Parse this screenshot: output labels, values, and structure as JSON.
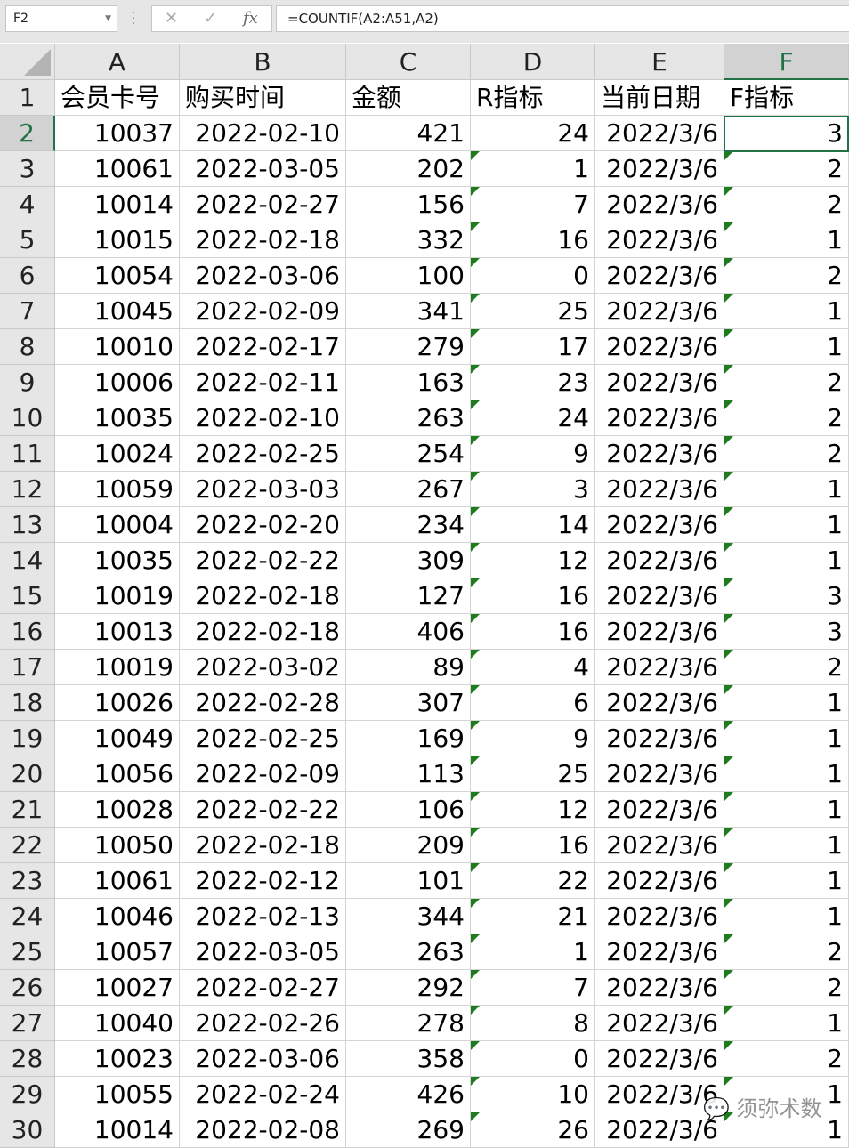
{
  "name_box": "F2",
  "formula": "=COUNTIF(A2:A51,A2)",
  "formula_icons": [
    "cancel-icon",
    "enter-icon",
    "fx-icon"
  ],
  "columns": [
    "A",
    "B",
    "C",
    "D",
    "E",
    "F"
  ],
  "selected_column": "F",
  "selected_row": 2,
  "header_row": [
    "会员卡号",
    "购买时间",
    "金额",
    "R指标",
    "当前日期",
    "F指标"
  ],
  "rows": [
    [
      "10037",
      "2022-02-10",
      "421",
      "24",
      "2022/3/6",
      "3"
    ],
    [
      "10061",
      "2022-03-05",
      "202",
      "1",
      "2022/3/6",
      "2"
    ],
    [
      "10014",
      "2022-02-27",
      "156",
      "7",
      "2022/3/6",
      "2"
    ],
    [
      "10015",
      "2022-02-18",
      "332",
      "16",
      "2022/3/6",
      "1"
    ],
    [
      "10054",
      "2022-03-06",
      "100",
      "0",
      "2022/3/6",
      "2"
    ],
    [
      "10045",
      "2022-02-09",
      "341",
      "25",
      "2022/3/6",
      "1"
    ],
    [
      "10010",
      "2022-02-17",
      "279",
      "17",
      "2022/3/6",
      "1"
    ],
    [
      "10006",
      "2022-02-11",
      "163",
      "23",
      "2022/3/6",
      "2"
    ],
    [
      "10035",
      "2022-02-10",
      "263",
      "24",
      "2022/3/6",
      "2"
    ],
    [
      "10024",
      "2022-02-25",
      "254",
      "9",
      "2022/3/6",
      "2"
    ],
    [
      "10059",
      "2022-03-03",
      "267",
      "3",
      "2022/3/6",
      "1"
    ],
    [
      "10004",
      "2022-02-20",
      "234",
      "14",
      "2022/3/6",
      "1"
    ],
    [
      "10035",
      "2022-02-22",
      "309",
      "12",
      "2022/3/6",
      "1"
    ],
    [
      "10019",
      "2022-02-18",
      "127",
      "16",
      "2022/3/6",
      "3"
    ],
    [
      "10013",
      "2022-02-18",
      "406",
      "16",
      "2022/3/6",
      "3"
    ],
    [
      "10019",
      "2022-03-02",
      "89",
      "4",
      "2022/3/6",
      "2"
    ],
    [
      "10026",
      "2022-02-28",
      "307",
      "6",
      "2022/3/6",
      "1"
    ],
    [
      "10049",
      "2022-02-25",
      "169",
      "9",
      "2022/3/6",
      "1"
    ],
    [
      "10056",
      "2022-02-09",
      "113",
      "25",
      "2022/3/6",
      "1"
    ],
    [
      "10028",
      "2022-02-22",
      "106",
      "12",
      "2022/3/6",
      "1"
    ],
    [
      "10050",
      "2022-02-18",
      "209",
      "16",
      "2022/3/6",
      "1"
    ],
    [
      "10061",
      "2022-02-12",
      "101",
      "22",
      "2022/3/6",
      "1"
    ],
    [
      "10046",
      "2022-02-13",
      "344",
      "21",
      "2022/3/6",
      "1"
    ],
    [
      "10057",
      "2022-03-05",
      "263",
      "1",
      "2022/3/6",
      "2"
    ],
    [
      "10027",
      "2022-02-27",
      "292",
      "7",
      "2022/3/6",
      "2"
    ],
    [
      "10040",
      "2022-02-26",
      "278",
      "8",
      "2022/3/6",
      "1"
    ],
    [
      "10023",
      "2022-03-06",
      "358",
      "0",
      "2022/3/6",
      "2"
    ],
    [
      "10055",
      "2022-02-24",
      "426",
      "10",
      "2022/3/6",
      "1"
    ],
    [
      "10014",
      "2022-02-08",
      "269",
      "26",
      "2022/3/6",
      "1"
    ]
  ],
  "watermark": "须弥术数",
  "colors": {
    "accent": "#217346",
    "error_triangle": "#1e7b1e"
  }
}
